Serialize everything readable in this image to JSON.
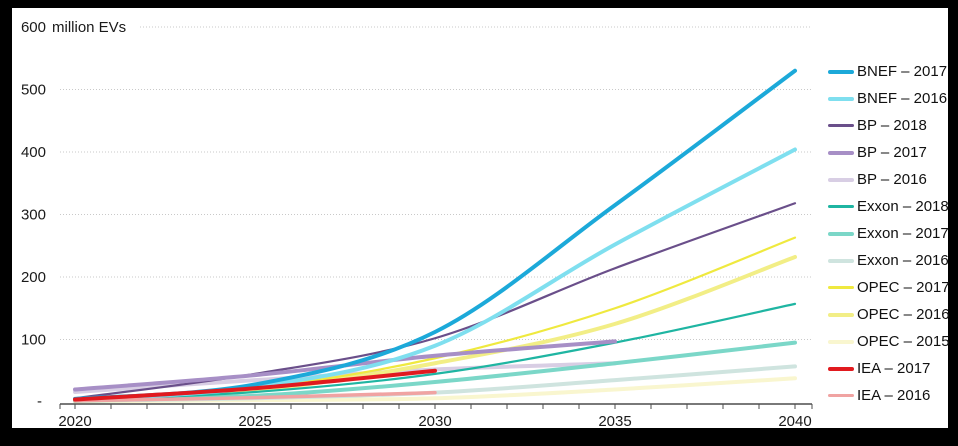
{
  "chart_data": {
    "type": "line",
    "title": "",
    "unit_label": "million EVs",
    "xlabel": "",
    "ylabel": "million EVs",
    "x_ticks": [
      2020,
      2025,
      2030,
      2035,
      2040
    ],
    "x_minor_tick_step_years": 1,
    "xlim": [
      2019.6,
      2040.5
    ],
    "ylim": [
      0,
      600
    ],
    "y_ticks": [
      600,
      500,
      400,
      300,
      200,
      100
    ],
    "zero_tick_label": "-",
    "grid": "horizontal-dotted",
    "legend_position": "right",
    "series": [
      {
        "name": "BNEF – 2017",
        "color": "#1ca9d9",
        "width": 4,
        "points": [
          [
            2020,
            5
          ],
          [
            2025,
            28
          ],
          [
            2030,
            112
          ],
          [
            2035,
            315
          ],
          [
            2040,
            530
          ]
        ]
      },
      {
        "name": "BNEF – 2016",
        "color": "#7fdfef",
        "width": 4,
        "points": [
          [
            2020,
            4
          ],
          [
            2025,
            24
          ],
          [
            2030,
            90
          ],
          [
            2035,
            252
          ],
          [
            2040,
            404
          ]
        ]
      },
      {
        "name": "BP – 2018",
        "color": "#6a4f8a",
        "width": 2.2,
        "points": [
          [
            2020,
            6
          ],
          [
            2025,
            45
          ],
          [
            2030,
            102
          ],
          [
            2035,
            214
          ],
          [
            2040,
            318
          ]
        ]
      },
      {
        "name": "BP – 2017",
        "color": "#a78fc6",
        "width": 4,
        "points": [
          [
            2020,
            20
          ],
          [
            2025,
            43
          ],
          [
            2030,
            74
          ],
          [
            2035,
            97
          ]
        ]
      },
      {
        "name": "BP – 2016",
        "color": "#d8cee4",
        "width": 4,
        "points": [
          [
            2020,
            16
          ],
          [
            2025,
            35
          ],
          [
            2030,
            52
          ],
          [
            2035,
            62
          ]
        ]
      },
      {
        "name": "Exxon – 2018",
        "color": "#1fb5a2",
        "width": 2.2,
        "points": [
          [
            2020,
            3
          ],
          [
            2025,
            16
          ],
          [
            2030,
            45
          ],
          [
            2035,
            95
          ],
          [
            2040,
            157
          ]
        ]
      },
      {
        "name": "Exxon – 2017",
        "color": "#7bd7c8",
        "width": 4,
        "points": [
          [
            2020,
            2
          ],
          [
            2025,
            10
          ],
          [
            2030,
            32
          ],
          [
            2035,
            62
          ],
          [
            2040,
            95
          ]
        ]
      },
      {
        "name": "Exxon – 2016",
        "color": "#cfe4df",
        "width": 4,
        "points": [
          [
            2020,
            2
          ],
          [
            2025,
            6
          ],
          [
            2030,
            15
          ],
          [
            2035,
            35
          ],
          [
            2040,
            57
          ]
        ]
      },
      {
        "name": "OPEC – 2017",
        "color": "#efe93f",
        "width": 2.2,
        "points": [
          [
            2020,
            3
          ],
          [
            2025,
            22
          ],
          [
            2030,
            70
          ],
          [
            2035,
            150
          ],
          [
            2040,
            263
          ]
        ]
      },
      {
        "name": "OPEC – 2016",
        "color": "#f2ee86",
        "width": 4,
        "points": [
          [
            2020,
            2
          ],
          [
            2025,
            18
          ],
          [
            2030,
            62
          ],
          [
            2035,
            125
          ],
          [
            2040,
            232
          ]
        ]
      },
      {
        "name": "OPEC – 2015",
        "color": "#f9f6cf",
        "width": 4,
        "points": [
          [
            2020,
            1
          ],
          [
            2025,
            3
          ],
          [
            2030,
            6
          ],
          [
            2035,
            20
          ],
          [
            2040,
            38
          ]
        ]
      },
      {
        "name": "IEA – 2017",
        "color": "#e11a1f",
        "width": 4,
        "points": [
          [
            2020,
            4
          ],
          [
            2025,
            22
          ],
          [
            2030,
            50
          ]
        ]
      },
      {
        "name": "IEA – 2016",
        "color": "#f0a3a2",
        "width": 3.5,
        "points": [
          [
            2020,
            2
          ],
          [
            2025,
            7
          ],
          [
            2030,
            15
          ]
        ]
      }
    ]
  },
  "colors": {
    "frame": "#000000",
    "panel": "#ffffff",
    "grid": "#c9c9c9",
    "axis": "#4d4d4d",
    "text": "#1a1a1a"
  }
}
